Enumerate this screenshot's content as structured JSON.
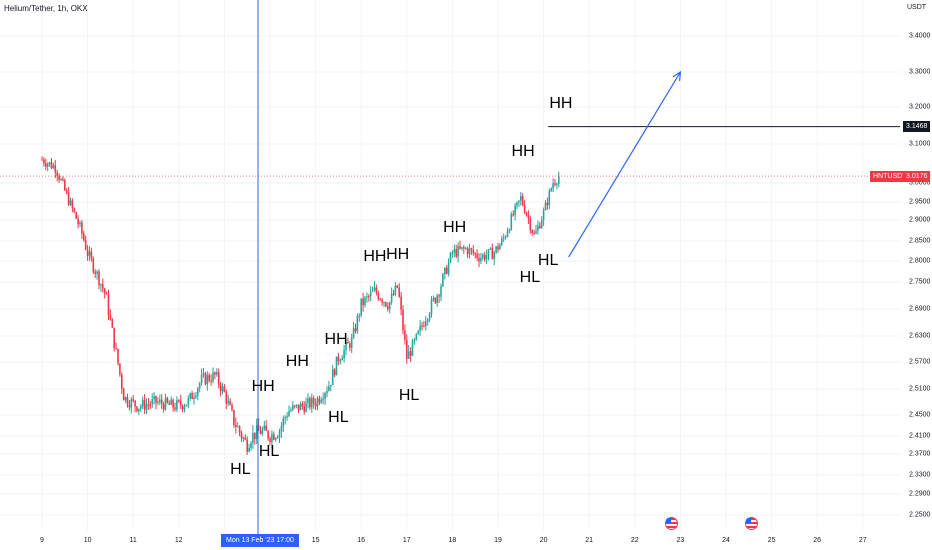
{
  "header": {
    "title": "Helium/Tether, 1h, OKX",
    "currency": "USDT"
  },
  "colors": {
    "up": "#26a69a",
    "down": "#f23645",
    "crosshair": "#2962ff",
    "price_line": "#f23645",
    "level_line": "#131722",
    "arrow": "#2962ff"
  },
  "price_tag": {
    "symbol": "HNTUSDT",
    "value": "3.0176"
  },
  "level_tag": {
    "value": "3.1468"
  },
  "crosshair_label": "Mon 13 Feb '23   17:00",
  "events": {
    "icon": "us-flag-icon",
    "dates": [
      "23",
      "25"
    ]
  },
  "chart_data": {
    "type": "candlestick",
    "title": "Helium/Tether, 1h, OKX",
    "ylabel": "USDT",
    "ylim": [
      2.23,
      3.47
    ],
    "y_ticks": [
      "3.4000",
      "3.3000",
      "3.2000",
      "3.1000",
      "3.0000",
      "2.9500",
      "2.9000",
      "2.8500",
      "2.8000",
      "2.7500",
      "2.6900",
      "2.6300",
      "2.5700",
      "2.5100",
      "2.4500",
      "2.4100",
      "2.3700",
      "2.3300",
      "2.2900",
      "2.2500"
    ],
    "x_ticks": [
      "9",
      "10",
      "11",
      "12",
      "13",
      "14",
      "15",
      "16",
      "17",
      "18",
      "19",
      "20",
      "21",
      "22",
      "23",
      "24",
      "25",
      "26",
      "27"
    ],
    "crosshair_time": "Mon 13 Feb '23 17:00",
    "last_price": 3.0176,
    "horizontal_level": 3.1468,
    "close_path": [
      [
        "9.0",
        3.06
      ],
      [
        "9.3",
        3.04
      ],
      [
        "9.6",
        2.95
      ],
      [
        "9.9",
        2.86
      ],
      [
        "10.0",
        2.82
      ],
      [
        "10.4",
        2.72
      ],
      [
        "10.8",
        2.49
      ],
      [
        "11.1",
        2.47
      ],
      [
        "11.5",
        2.48
      ],
      [
        "11.9",
        2.47
      ],
      [
        "12.2",
        2.48
      ],
      [
        "12.5",
        2.53
      ],
      [
        "12.8",
        2.54
      ],
      [
        "13.0",
        2.5
      ],
      [
        "13.2",
        2.44
      ],
      [
        "13.5",
        2.39
      ],
      [
        "13.6",
        2.41
      ],
      [
        "13.8",
        2.42
      ],
      [
        "14.0",
        2.41
      ],
      [
        "14.2",
        2.42
      ],
      [
        "14.4",
        2.46
      ],
      [
        "14.7",
        2.47
      ],
      [
        "15.0",
        2.48
      ],
      [
        "15.3",
        2.52
      ],
      [
        "15.5",
        2.58
      ],
      [
        "15.8",
        2.62
      ],
      [
        "16.0",
        2.7
      ],
      [
        "16.3",
        2.73
      ],
      [
        "16.6",
        2.7
      ],
      [
        "16.8",
        2.74
      ],
      [
        "17.0",
        2.58
      ],
      [
        "17.2",
        2.62
      ],
      [
        "17.4",
        2.67
      ],
      [
        "17.7",
        2.73
      ],
      [
        "18.0",
        2.82
      ],
      [
        "18.3",
        2.83
      ],
      [
        "18.6",
        2.81
      ],
      [
        "18.9",
        2.82
      ],
      [
        "19.1",
        2.85
      ],
      [
        "19.5",
        2.96
      ],
      [
        "19.8",
        2.86
      ],
      [
        "20.0",
        2.92
      ],
      [
        "20.2",
        3.0
      ],
      [
        "20.35",
        3.02
      ]
    ],
    "annotations": [
      {
        "label": "HL",
        "x": 13.35,
        "y": 2.34
      },
      {
        "label": "HL",
        "x": 13.98,
        "y": 2.375
      },
      {
        "label": "HH",
        "x": 13.85,
        "y": 2.515
      },
      {
        "label": "HH",
        "x": 14.6,
        "y": 2.57
      },
      {
        "label": "HL",
        "x": 15.5,
        "y": 2.445
      },
      {
        "label": "HH",
        "x": 15.45,
        "y": 2.62
      },
      {
        "label": "HH",
        "x": 16.3,
        "y": 2.81
      },
      {
        "label": "HH",
        "x": 16.8,
        "y": 2.815
      },
      {
        "label": "HL",
        "x": 17.05,
        "y": 2.495
      },
      {
        "label": "HH",
        "x": 18.05,
        "y": 2.88
      },
      {
        "label": "HL",
        "x": 19.7,
        "y": 2.76
      },
      {
        "label": "HH",
        "x": 19.55,
        "y": 3.08
      },
      {
        "label": "HL",
        "x": 20.1,
        "y": 2.8
      },
      {
        "label": "HH",
        "x": 20.38,
        "y": 3.21
      }
    ],
    "arrow": {
      "from": [
        20.55,
        2.81
      ],
      "to": [
        23.0,
        3.3
      ]
    }
  }
}
